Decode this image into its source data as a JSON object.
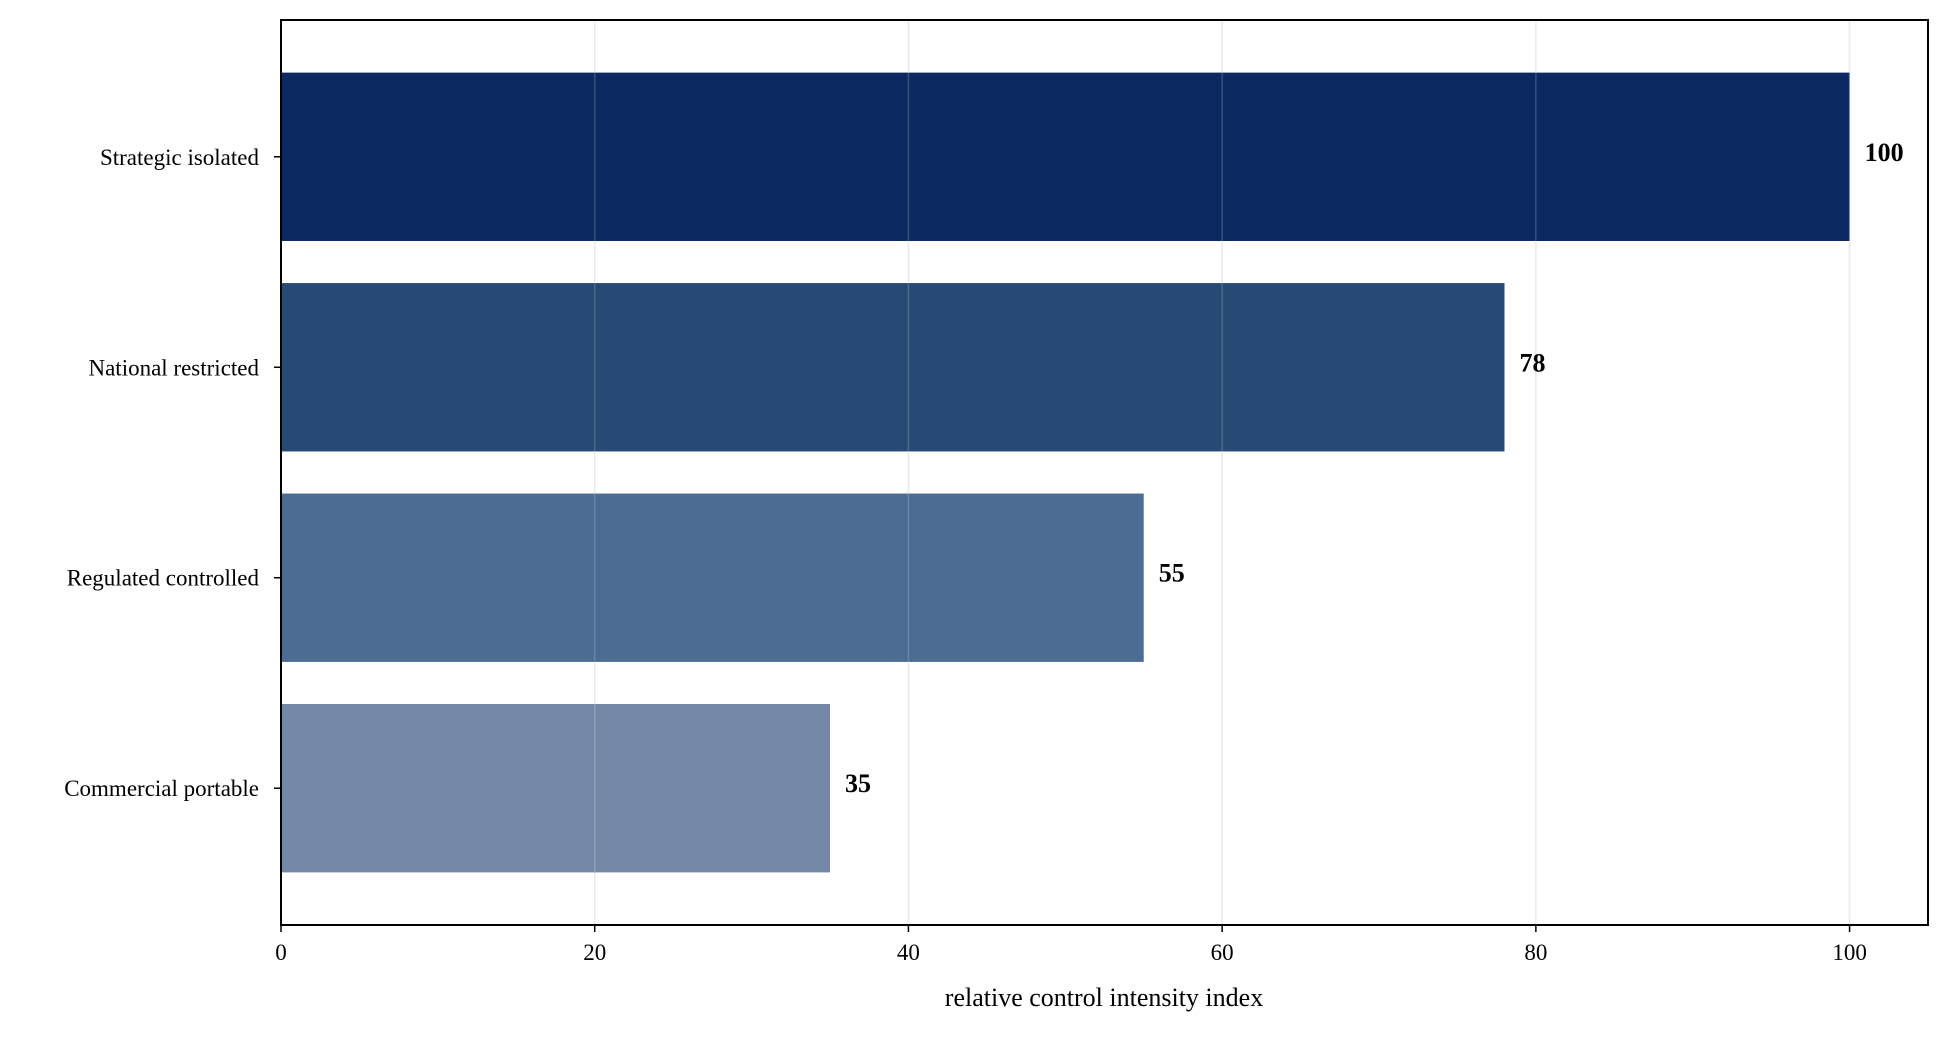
{
  "chart_data": {
    "type": "bar",
    "orientation": "horizontal",
    "categories": [
      "Strategic isolated",
      "National restricted",
      "Regulated controlled",
      "Commercial portable"
    ],
    "values": [
      100,
      78,
      55,
      35
    ],
    "value_labels": [
      "100",
      "78",
      "55",
      "35"
    ],
    "colors": [
      "#0b2960",
      "#274a74",
      "#4c6c94",
      "#7489a8"
    ],
    "title": "",
    "xlabel": "relative control intensity index",
    "ylabel": "",
    "xlim": [
      0,
      105
    ],
    "xticks": [
      0,
      20,
      40,
      60,
      80,
      100
    ],
    "xtick_labels": [
      "0",
      "20",
      "40",
      "60",
      "80",
      "100"
    ],
    "grid": "vertical",
    "legend": "none"
  }
}
